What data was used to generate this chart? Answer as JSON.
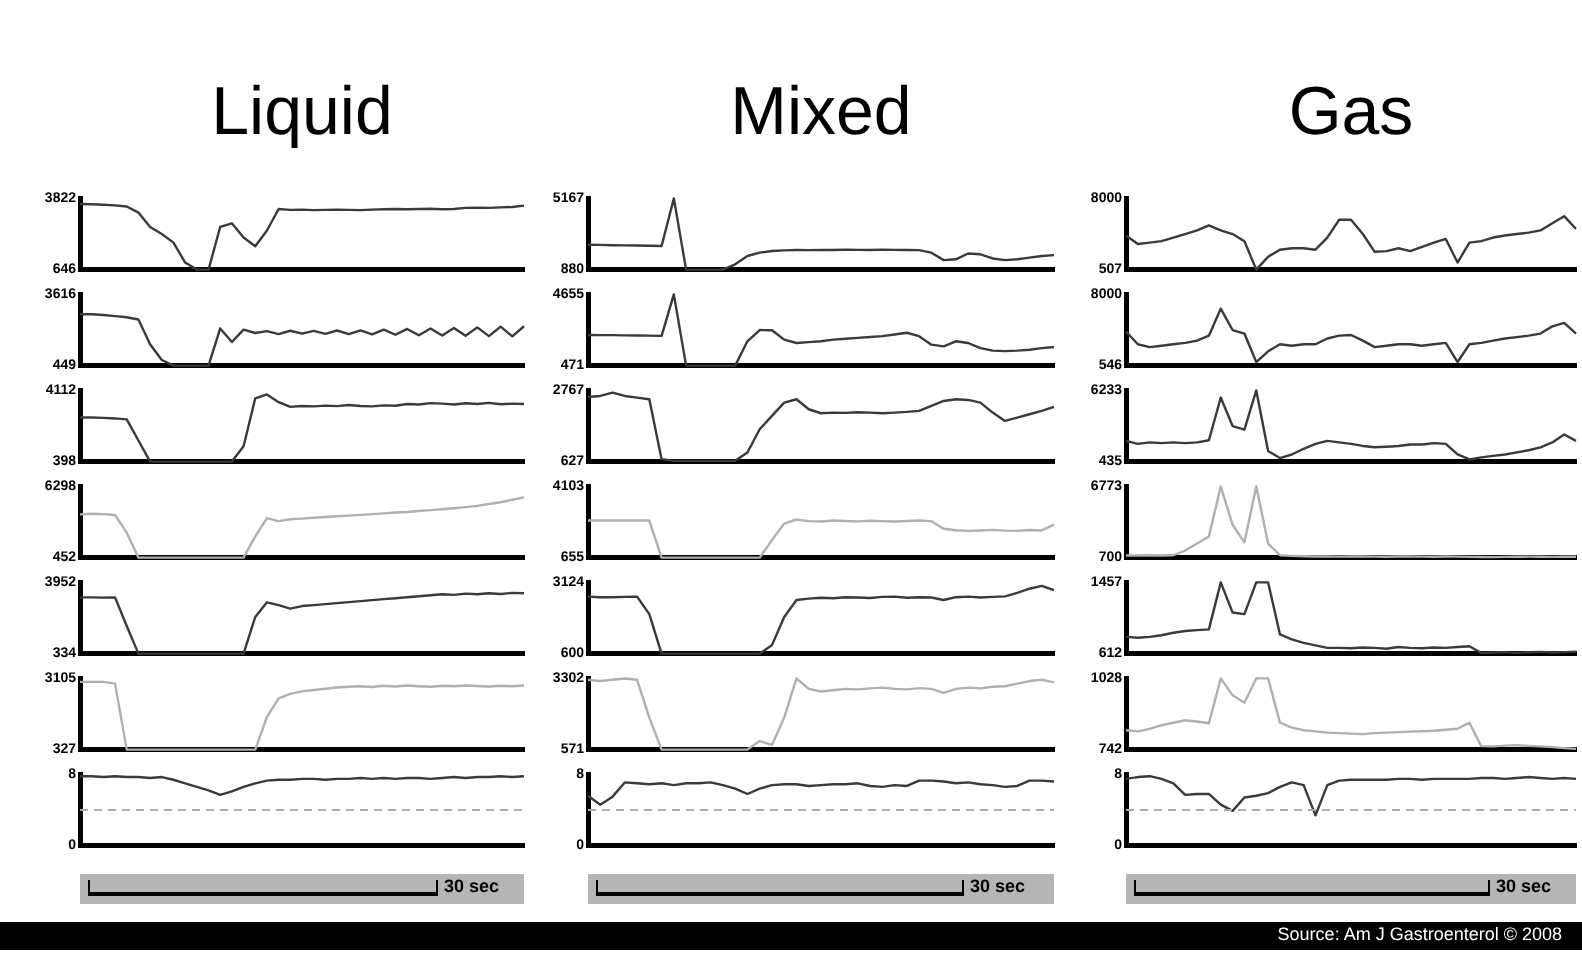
{
  "chart_data": [
    {
      "type": "line",
      "title": "Liquid",
      "categories": [
        null,
        null,
        null,
        null,
        null,
        null,
        null,
        null,
        null,
        null,
        null,
        null,
        null,
        null,
        null,
        null,
        null,
        null,
        null,
        null,
        null,
        null,
        null,
        null,
        null,
        null,
        null,
        null,
        null,
        null,
        null,
        null,
        null,
        null,
        null,
        null,
        null,
        null,
        null
      ],
      "color": "#3a3a3a",
      "ylim": [
        646,
        3822
      ],
      "yticks": [
        646,
        3822
      ],
      "tick_labels": "y",
      "values": [
        3570,
        3560,
        3540,
        3510,
        3460,
        3190,
        2550,
        2230,
        1850,
        960,
        646,
        646,
        2550,
        2710,
        2080,
        1690,
        2390,
        3350,
        3310,
        3320,
        3300,
        3310,
        3320,
        3310,
        3300,
        3320,
        3340,
        3350,
        3340,
        3350,
        3360,
        3340,
        3350,
        3400,
        3410,
        3400,
        3420,
        3440,
        3500
      ]
    },
    {
      "type": "line",
      "categories": [
        null,
        null,
        null,
        null,
        null,
        null,
        null,
        null,
        null,
        null,
        null,
        null,
        null,
        null,
        null,
        null,
        null,
        null,
        null,
        null,
        null,
        null,
        null,
        null,
        null,
        null,
        null,
        null,
        null,
        null,
        null,
        null,
        null,
        null,
        null,
        null,
        null,
        null,
        null
      ],
      "color": "#3a3a3a",
      "ylim": [
        449,
        3616
      ],
      "yticks": [
        449,
        3616
      ],
      "tick_labels": "y",
      "values": [
        2730,
        2730,
        2700,
        2650,
        2600,
        2500,
        1400,
        700,
        449,
        449,
        449,
        449,
        2100,
        1500,
        2050,
        1900,
        1980,
        1850,
        2000,
        1870,
        1990,
        1860,
        2010,
        1850,
        2020,
        1840,
        2050,
        1820,
        2080,
        1800,
        2100,
        1790,
        2120,
        1780,
        2150,
        1760,
        2180,
        1750,
        2200
      ]
    },
    {
      "type": "line",
      "categories": [
        null,
        null,
        null,
        null,
        null,
        null,
        null,
        null,
        null,
        null,
        null,
        null,
        null,
        null,
        null,
        null,
        null,
        null,
        null,
        null,
        null,
        null,
        null,
        null,
        null,
        null,
        null,
        null,
        null,
        null,
        null,
        null,
        null,
        null,
        null,
        null,
        null,
        null,
        null
      ],
      "color": "#3a3a3a",
      "ylim": [
        398,
        4112
      ],
      "yticks": [
        398,
        4112
      ],
      "tick_labels": "y",
      "values": [
        2700,
        2700,
        2680,
        2650,
        2600,
        1500,
        398,
        398,
        398,
        398,
        398,
        398,
        398,
        398,
        1200,
        3700,
        3900,
        3500,
        3250,
        3300,
        3280,
        3320,
        3290,
        3350,
        3300,
        3280,
        3330,
        3310,
        3400,
        3380,
        3450,
        3420,
        3380,
        3440,
        3400,
        3460,
        3390,
        3420,
        3400
      ]
    },
    {
      "type": "line",
      "categories": [
        null,
        null,
        null,
        null,
        null,
        null,
        null,
        null,
        null,
        null,
        null,
        null,
        null,
        null,
        null,
        null,
        null,
        null,
        null,
        null,
        null,
        null,
        null,
        null,
        null,
        null,
        null,
        null,
        null,
        null,
        null,
        null,
        null,
        null,
        null,
        null,
        null,
        null,
        null
      ],
      "color": "#b0b0b0",
      "ylim": [
        452,
        6298
      ],
      "yticks": [
        452,
        6298
      ],
      "tick_labels": "y",
      "values": [
        4000,
        4050,
        4020,
        3950,
        2500,
        452,
        452,
        452,
        452,
        452,
        452,
        452,
        452,
        452,
        452,
        2200,
        3700,
        3450,
        3600,
        3650,
        3720,
        3780,
        3850,
        3900,
        3960,
        4020,
        4080,
        4150,
        4200,
        4280,
        4350,
        4420,
        4500,
        4600,
        4700,
        4850,
        5000,
        5200,
        5400
      ]
    },
    {
      "type": "line",
      "categories": [
        null,
        null,
        null,
        null,
        null,
        null,
        null,
        null,
        null,
        null,
        null,
        null,
        null,
        null,
        null,
        null,
        null,
        null,
        null,
        null,
        null,
        null,
        null,
        null,
        null,
        null,
        null,
        null,
        null,
        null,
        null,
        null,
        null,
        null,
        null,
        null,
        null,
        null,
        null
      ],
      "color": "#3a3a3a",
      "ylim": [
        334,
        3952
      ],
      "yticks": [
        334,
        3952
      ],
      "tick_labels": "y",
      "values": [
        3190,
        3190,
        3180,
        3190,
        1740,
        334,
        334,
        334,
        334,
        334,
        334,
        334,
        334,
        334,
        334,
        2200,
        2940,
        2800,
        2620,
        2750,
        2800,
        2850,
        2900,
        2950,
        3000,
        3050,
        3100,
        3150,
        3200,
        3250,
        3300,
        3350,
        3320,
        3380,
        3350,
        3400,
        3360,
        3420,
        3400
      ]
    },
    {
      "type": "line",
      "categories": [
        null,
        null,
        null,
        null,
        null,
        null,
        null,
        null,
        null,
        null,
        null,
        null,
        null,
        null,
        null,
        null,
        null,
        null,
        null,
        null,
        null,
        null,
        null,
        null,
        null,
        null,
        null,
        null,
        null,
        null,
        null,
        null,
        null,
        null,
        null,
        null,
        null,
        null,
        null
      ],
      "color": "#b0b0b0",
      "ylim": [
        327,
        3105
      ],
      "yticks": [
        327,
        3105
      ],
      "tick_labels": "y",
      "values": [
        2970,
        2970,
        2970,
        2900,
        327,
        327,
        327,
        327,
        327,
        327,
        327,
        327,
        327,
        327,
        327,
        327,
        1600,
        2330,
        2500,
        2600,
        2650,
        2700,
        2750,
        2780,
        2800,
        2770,
        2820,
        2790,
        2830,
        2800,
        2780,
        2820,
        2800,
        2830,
        2810,
        2790,
        2820,
        2800,
        2830
      ]
    },
    {
      "type": "line",
      "categories": [
        null,
        null,
        null,
        null,
        null,
        null,
        null,
        null,
        null,
        null,
        null,
        null,
        null,
        null,
        null,
        null,
        null,
        null,
        null,
        null,
        null,
        null,
        null,
        null,
        null,
        null,
        null,
        null,
        null,
        null,
        null,
        null,
        null,
        null,
        null,
        null,
        null,
        null,
        null
      ],
      "color": "#3a3a3a",
      "ylim": [
        0,
        8
      ],
      "yticks": [
        0,
        8
      ],
      "tick_labels": "y",
      "ref_lines": [
        {
          "axis": "y",
          "value": 4,
          "color": "#aaaaaa",
          "line_style": "dashed"
        }
      ],
      "annotations": [
        "30 sec"
      ],
      "values": [
        7.8,
        7.8,
        7.7,
        7.8,
        7.7,
        7.7,
        7.6,
        7.7,
        7.4,
        7.0,
        6.6,
        6.2,
        5.7,
        6.1,
        6.6,
        7.0,
        7.3,
        7.4,
        7.4,
        7.5,
        7.5,
        7.4,
        7.5,
        7.5,
        7.6,
        7.5,
        7.6,
        7.5,
        7.6,
        7.6,
        7.5,
        7.6,
        7.7,
        7.6,
        7.7,
        7.7,
        7.8,
        7.7,
        7.8
      ]
    },
    {
      "type": "line",
      "title": "Mixed",
      "categories": [
        null,
        null,
        null,
        null,
        null,
        null,
        null,
        null,
        null,
        null,
        null,
        null,
        null,
        null,
        null,
        null,
        null,
        null,
        null,
        null,
        null,
        null,
        null,
        null,
        null,
        null,
        null,
        null,
        null,
        null,
        null,
        null,
        null,
        null,
        null,
        null,
        null,
        null,
        null
      ],
      "color": "#3a3a3a",
      "ylim": [
        880,
        5167
      ],
      "yticks": [
        880,
        5167
      ],
      "tick_labels": "y",
      "values": [
        2380,
        2370,
        2350,
        2340,
        2330,
        2320,
        2300,
        5167,
        880,
        880,
        880,
        880,
        1200,
        1700,
        1900,
        2000,
        2040,
        2060,
        2050,
        2070,
        2060,
        2080,
        2070,
        2060,
        2080,
        2070,
        2060,
        2050,
        1900,
        1450,
        1500,
        1850,
        1800,
        1550,
        1450,
        1500,
        1600,
        1700,
        1750
      ]
    },
    {
      "type": "line",
      "categories": [
        null,
        null,
        null,
        null,
        null,
        null,
        null,
        null,
        null,
        null,
        null,
        null,
        null,
        null,
        null,
        null,
        null,
        null,
        null,
        null,
        null,
        null,
        null,
        null,
        null,
        null,
        null,
        null,
        null,
        null,
        null,
        null,
        null,
        null,
        null,
        null,
        null,
        null,
        null
      ],
      "color": "#3a3a3a",
      "ylim": [
        471,
        4655
      ],
      "yticks": [
        471,
        4655
      ],
      "tick_labels": "y",
      "values": [
        2270,
        2260,
        2260,
        2250,
        2240,
        2230,
        2220,
        4655,
        471,
        471,
        471,
        471,
        471,
        1900,
        2560,
        2550,
        2000,
        1800,
        1850,
        1900,
        2000,
        2050,
        2100,
        2150,
        2200,
        2300,
        2400,
        2200,
        1700,
        1600,
        1900,
        1800,
        1500,
        1350,
        1320,
        1350,
        1400,
        1500,
        1560
      ]
    },
    {
      "type": "line",
      "categories": [
        null,
        null,
        null,
        null,
        null,
        null,
        null,
        null,
        null,
        null,
        null,
        null,
        null,
        null,
        null,
        null,
        null,
        null,
        null,
        null,
        null,
        null,
        null,
        null,
        null,
        null,
        null,
        null,
        null,
        null,
        null,
        null,
        null,
        null,
        null,
        null,
        null,
        null,
        null
      ],
      "color": "#3a3a3a",
      "ylim": [
        627,
        2767
      ],
      "yticks": [
        627,
        2767
      ],
      "tick_labels": "y",
      "values": [
        2570,
        2600,
        2700,
        2600,
        2550,
        2500,
        700,
        650,
        650,
        650,
        650,
        650,
        650,
        900,
        1600,
        2000,
        2400,
        2500,
        2200,
        2080,
        2100,
        2090,
        2110,
        2100,
        2080,
        2100,
        2120,
        2150,
        2300,
        2450,
        2500,
        2480,
        2400,
        2100,
        1850,
        1950,
        2050,
        2150,
        2270
      ]
    },
    {
      "type": "line",
      "categories": [
        null,
        null,
        null,
        null,
        null,
        null,
        null,
        null,
        null,
        null,
        null,
        null,
        null,
        null,
        null,
        null,
        null,
        null,
        null,
        null,
        null,
        null,
        null,
        null,
        null,
        null,
        null,
        null,
        null,
        null,
        null,
        null,
        null,
        null,
        null,
        null,
        null,
        null,
        null
      ],
      "color": "#b0b0b0",
      "ylim": [
        655,
        4103
      ],
      "yticks": [
        655,
        4103
      ],
      "tick_labels": "y",
      "values": [
        2450,
        2450,
        2450,
        2450,
        2450,
        2450,
        655,
        655,
        655,
        655,
        655,
        655,
        655,
        655,
        655,
        1500,
        2300,
        2500,
        2420,
        2400,
        2450,
        2430,
        2410,
        2440,
        2420,
        2400,
        2430,
        2450,
        2420,
        2050,
        1980,
        1950,
        1970,
        2000,
        1960,
        1950,
        1990,
        1970,
        2250
      ]
    },
    {
      "type": "line",
      "categories": [
        null,
        null,
        null,
        null,
        null,
        null,
        null,
        null,
        null,
        null,
        null,
        null,
        null,
        null,
        null,
        null,
        null,
        null,
        null,
        null,
        null,
        null,
        null,
        null,
        null,
        null,
        null,
        null,
        null,
        null,
        null,
        null,
        null,
        null,
        null,
        null,
        null,
        null,
        null
      ],
      "color": "#3a3a3a",
      "ylim": [
        600,
        3124
      ],
      "yticks": [
        600,
        3124
      ],
      "tick_labels": "y",
      "values": [
        2620,
        2600,
        2600,
        2610,
        2620,
        2000,
        600,
        600,
        600,
        600,
        600,
        600,
        600,
        600,
        600,
        900,
        1900,
        2500,
        2550,
        2580,
        2560,
        2600,
        2590,
        2570,
        2610,
        2620,
        2580,
        2600,
        2590,
        2500,
        2600,
        2620,
        2590,
        2610,
        2630,
        2750,
        2900,
        3000,
        2850
      ]
    },
    {
      "type": "line",
      "categories": [
        null,
        null,
        null,
        null,
        null,
        null,
        null,
        null,
        null,
        null,
        null,
        null,
        null,
        null,
        null,
        null,
        null,
        null,
        null,
        null,
        null,
        null,
        null,
        null,
        null,
        null,
        null,
        null,
        null,
        null,
        null,
        null,
        null,
        null,
        null,
        null,
        null,
        null,
        null
      ],
      "color": "#b0b0b0",
      "ylim": [
        571,
        3302
      ],
      "yticks": [
        571,
        3302
      ],
      "tick_labels": "y",
      "values": [
        3250,
        3200,
        3250,
        3300,
        3250,
        1800,
        571,
        571,
        571,
        571,
        571,
        571,
        571,
        571,
        900,
        750,
        1800,
        3300,
        2900,
        2800,
        2850,
        2900,
        2880,
        2920,
        2950,
        2900,
        2880,
        2930,
        2900,
        2750,
        2900,
        2950,
        2920,
        2980,
        3000,
        3100,
        3200,
        3250,
        3150
      ]
    },
    {
      "type": "line",
      "categories": [
        null,
        null,
        null,
        null,
        null,
        null,
        null,
        null,
        null,
        null,
        null,
        null,
        null,
        null,
        null,
        null,
        null,
        null,
        null,
        null,
        null,
        null,
        null,
        null,
        null,
        null,
        null,
        null,
        null,
        null,
        null,
        null,
        null,
        null,
        null,
        null,
        null,
        null,
        null
      ],
      "color": "#3a3a3a",
      "ylim": [
        0,
        8
      ],
      "yticks": [
        0,
        8
      ],
      "tick_labels": "y",
      "ref_lines": [
        {
          "axis": "y",
          "value": 4,
          "color": "#aaaaaa",
          "line_style": "dashed"
        }
      ],
      "annotations": [
        "30 sec"
      ],
      "values": [
        5.6,
        4.6,
        5.5,
        7.1,
        7.0,
        6.9,
        7.0,
        6.8,
        7.0,
        7.0,
        7.1,
        6.8,
        6.4,
        5.8,
        6.4,
        6.8,
        6.9,
        6.9,
        6.7,
        6.8,
        6.9,
        6.9,
        7.0,
        6.7,
        6.6,
        6.8,
        6.7,
        7.3,
        7.3,
        7.2,
        7.0,
        7.1,
        6.9,
        6.8,
        6.6,
        6.7,
        7.3,
        7.3,
        7.2
      ]
    },
    {
      "type": "line",
      "title": "Gas",
      "categories": [
        null,
        null,
        null,
        null,
        null,
        null,
        null,
        null,
        null,
        null,
        null,
        null,
        null,
        null,
        null,
        null,
        null,
        null,
        null,
        null,
        null,
        null,
        null,
        null,
        null,
        null,
        null,
        null,
        null,
        null,
        null,
        null,
        null,
        null,
        null,
        null,
        null,
        null,
        null
      ],
      "color": "#3a3a3a",
      "ylim": [
        507,
        8000
      ],
      "yticks": [
        507,
        8000
      ],
      "tick_labels": "y",
      "values": [
        4100,
        3200,
        3350,
        3500,
        3880,
        4250,
        4630,
        5150,
        4630,
        4250,
        3500,
        507,
        1850,
        2600,
        2750,
        2750,
        2600,
        3880,
        5750,
        5750,
        4250,
        2380,
        2450,
        2750,
        2450,
        2900,
        3350,
        3730,
        1250,
        3350,
        3500,
        3880,
        4100,
        4250,
        4400,
        4630,
        5380,
        6130,
        4780
      ]
    },
    {
      "type": "line",
      "categories": [
        null,
        null,
        null,
        null,
        null,
        null,
        null,
        null,
        null,
        null,
        null,
        null,
        null,
        null,
        null,
        null,
        null,
        null,
        null,
        null,
        null,
        null,
        null,
        null,
        null,
        null,
        null,
        null,
        null,
        null,
        null,
        null,
        null,
        null,
        null,
        null,
        null,
        null,
        null
      ],
      "color": "#3a3a3a",
      "ylim": [
        546,
        8000
      ],
      "yticks": [
        546,
        8000
      ],
      "tick_labels": "y",
      "values": [
        4120,
        2780,
        2480,
        2630,
        2780,
        2930,
        3160,
        3680,
        6510,
        4270,
        3900,
        920,
        2040,
        2780,
        2630,
        2780,
        2780,
        3380,
        3680,
        3750,
        3160,
        2480,
        2630,
        2780,
        2780,
        2630,
        2780,
        2930,
        920,
        2780,
        2930,
        3160,
        3380,
        3530,
        3680,
        3900,
        4650,
        5020,
        3900
      ]
    },
    {
      "type": "line",
      "categories": [
        null,
        null,
        null,
        null,
        null,
        null,
        null,
        null,
        null,
        null,
        null,
        null,
        null,
        null,
        null,
        null,
        null,
        null,
        null,
        null,
        null,
        null,
        null,
        null,
        null,
        null,
        null,
        null,
        null,
        null,
        null,
        null,
        null,
        null,
        null,
        null,
        null,
        null,
        null
      ],
      "color": "#3a3a3a",
      "ylim": [
        435,
        6233
      ],
      "yticks": [
        435,
        6233
      ],
      "tick_labels": "y",
      "values": [
        2120,
        1880,
        2000,
        1940,
        2000,
        1940,
        2000,
        2170,
        5650,
        3330,
        3040,
        6233,
        1300,
        725,
        1015,
        1480,
        1880,
        2120,
        2000,
        1880,
        1710,
        1600,
        1650,
        1710,
        1830,
        1830,
        1940,
        1880,
        1015,
        610,
        780,
        900,
        1015,
        1190,
        1360,
        1600,
        2000,
        2640,
        2120
      ]
    },
    {
      "type": "line",
      "categories": [
        null,
        null,
        null,
        null,
        null,
        null,
        null,
        null,
        null,
        null,
        null,
        null,
        null,
        null,
        null,
        null,
        null,
        null,
        null,
        null,
        null,
        null,
        null,
        null,
        null,
        null,
        null,
        null,
        null,
        null,
        null,
        null,
        null,
        null,
        null,
        null,
        null,
        null,
        null
      ],
      "color": "#b0b0b0",
      "ylim": [
        700,
        6773
      ],
      "yticks": [
        700,
        6773
      ],
      "tick_labels": "y",
      "values": [
        880,
        880,
        900,
        880,
        900,
        1300,
        1900,
        2500,
        6773,
        3500,
        2000,
        6773,
        1900,
        900,
        850,
        820,
        800,
        790,
        780,
        800,
        790,
        780,
        770,
        790,
        800,
        780,
        770,
        790,
        780,
        760,
        750,
        740,
        760,
        770,
        780,
        770,
        760,
        780,
        770
      ]
    },
    {
      "type": "line",
      "categories": [
        null,
        null,
        null,
        null,
        null,
        null,
        null,
        null,
        null,
        null,
        null,
        null,
        null,
        null,
        null,
        null,
        null,
        null,
        null,
        null,
        null,
        null,
        null,
        null,
        null,
        null,
        null,
        null,
        null,
        null,
        null,
        null,
        null,
        null,
        null,
        null,
        null,
        null,
        null
      ],
      "color": "#3a3a3a",
      "ylim": [
        612,
        1457
      ],
      "yticks": [
        612,
        1457
      ],
      "tick_labels": "y",
      "values": [
        810,
        800,
        810,
        830,
        860,
        880,
        890,
        900,
        1457,
        1100,
        1080,
        1457,
        1457,
        840,
        780,
        740,
        710,
        680,
        680,
        675,
        685,
        680,
        670,
        690,
        680,
        675,
        685,
        680,
        690,
        700,
        620,
        625,
        630,
        620,
        628,
        632,
        625,
        630,
        635
      ]
    },
    {
      "type": "line",
      "categories": [
        null,
        null,
        null,
        null,
        null,
        null,
        null,
        null,
        null,
        null,
        null,
        null,
        null,
        null,
        null,
        null,
        null,
        null,
        null,
        null,
        null,
        null,
        null,
        null,
        null,
        null,
        null,
        null,
        null,
        null,
        null,
        null,
        null,
        null,
        null,
        null,
        null,
        null,
        null
      ],
      "color": "#b0b0b0",
      "ylim": [
        742,
        1028
      ],
      "yticks": [
        742,
        1028
      ],
      "tick_labels": "y",
      "values": [
        820,
        815,
        825,
        840,
        850,
        860,
        855,
        848,
        1028,
        960,
        930,
        1028,
        1028,
        850,
        830,
        820,
        815,
        810,
        808,
        806,
        804,
        808,
        810,
        812,
        814,
        816,
        818,
        822,
        826,
        850,
        756,
        755,
        758,
        760,
        757,
        755,
        752,
        748,
        745
      ]
    },
    {
      "type": "line",
      "categories": [
        null,
        null,
        null,
        null,
        null,
        null,
        null,
        null,
        null,
        null,
        null,
        null,
        null,
        null,
        null,
        null,
        null,
        null,
        null,
        null,
        null,
        null,
        null,
        null,
        null,
        null,
        null,
        null,
        null,
        null,
        null,
        null,
        null,
        null,
        null,
        null,
        null,
        null,
        null
      ],
      "color": "#3a3a3a",
      "ylim": [
        0,
        8
      ],
      "yticks": [
        0,
        8
      ],
      "tick_labels": "y",
      "ref_lines": [
        {
          "axis": "y",
          "value": 4,
          "color": "#aaaaaa",
          "line_style": "dashed"
        }
      ],
      "annotations": [
        "30 sec",
        "Source: Am J Gastroenterol © 2008"
      ],
      "values": [
        7.5,
        7.7,
        7.8,
        7.5,
        7.0,
        5.7,
        5.8,
        5.8,
        4.6,
        3.9,
        5.4,
        5.6,
        5.9,
        6.6,
        7.1,
        6.8,
        3.4,
        6.8,
        7.3,
        7.4,
        7.4,
        7.4,
        7.4,
        7.5,
        7.5,
        7.4,
        7.5,
        7.5,
        7.5,
        7.5,
        7.6,
        7.6,
        7.5,
        7.6,
        7.7,
        7.6,
        7.5,
        7.6,
        7.5
      ]
    }
  ]
}
